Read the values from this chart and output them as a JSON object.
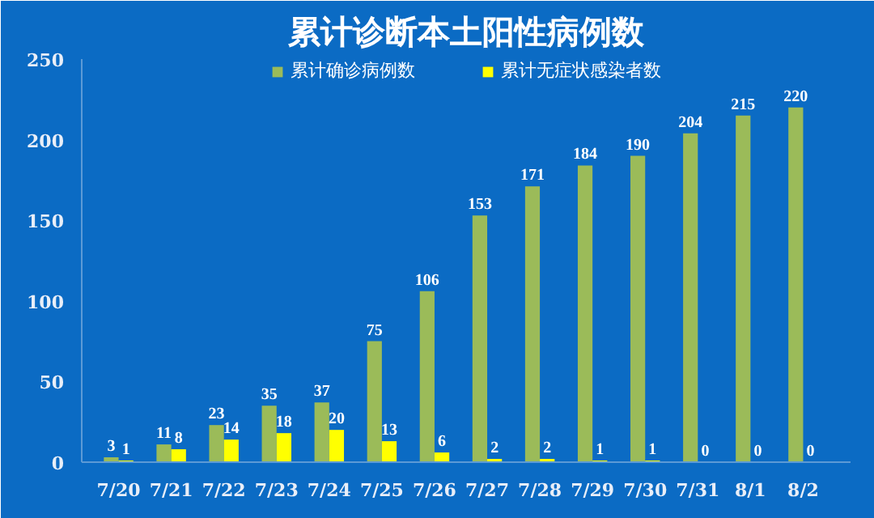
{
  "chart_data": {
    "type": "bar",
    "title": "累计诊断本土阳性病例数",
    "categories": [
      "7/20",
      "7/21",
      "7/22",
      "7/23",
      "7/24",
      "7/25",
      "7/26",
      "7/27",
      "7/28",
      "7/29",
      "7/30",
      "7/31",
      "8/1",
      "8/2"
    ],
    "series": [
      {
        "name": "累计确诊病例数",
        "color": "#9bbb59",
        "values": [
          3,
          11,
          23,
          35,
          37,
          75,
          106,
          153,
          171,
          184,
          190,
          204,
          215,
          220
        ]
      },
      {
        "name": "累计无症状感染者数",
        "color": "#ffff00",
        "values": [
          1,
          8,
          14,
          18,
          20,
          13,
          6,
          2,
          2,
          1,
          1,
          0,
          0,
          0
        ]
      }
    ],
    "ylim": [
      0,
      250
    ],
    "yticks": [
      0,
      50,
      100,
      150,
      200,
      250
    ],
    "grid": false,
    "legend": "top",
    "data_labels": true
  }
}
